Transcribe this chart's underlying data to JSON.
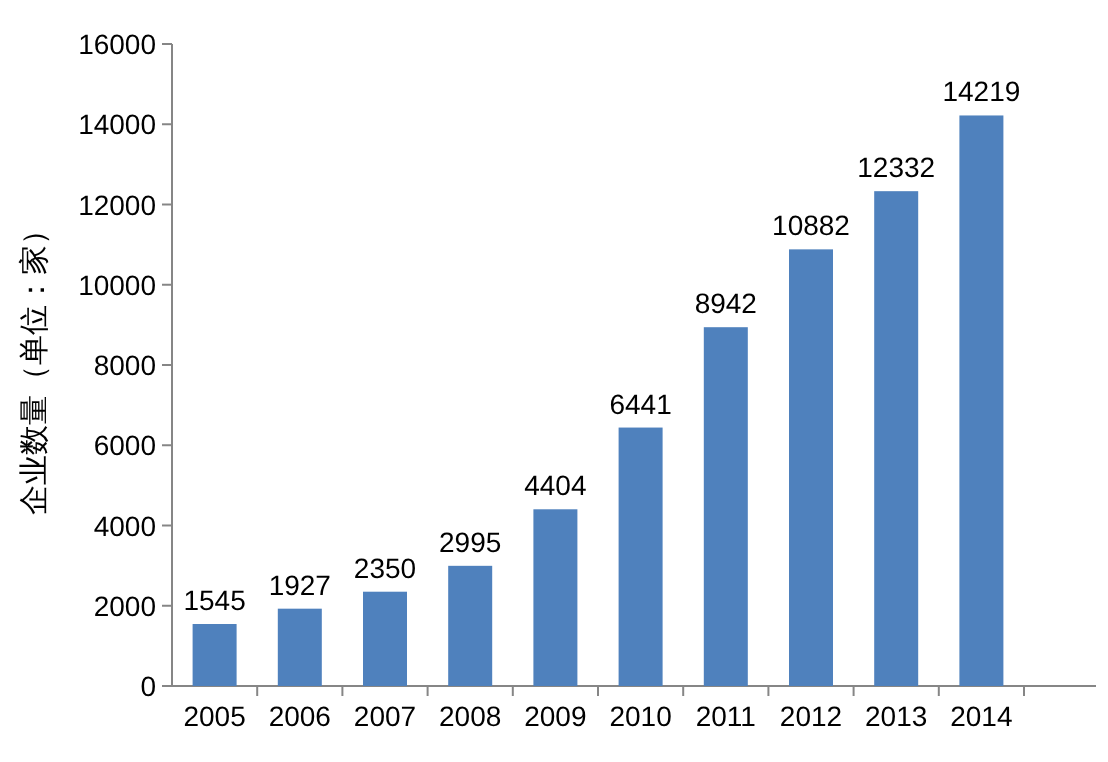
{
  "chart_data": {
    "type": "bar",
    "ylabel": "企业数量（单位：家）",
    "categories": [
      "2005",
      "2006",
      "2007",
      "2008",
      "2009",
      "2010",
      "2011",
      "2012",
      "2013",
      "2014"
    ],
    "values": [
      1545,
      1927,
      2350,
      2995,
      4404,
      6441,
      8942,
      10882,
      12332,
      14219
    ],
    "color": "#4f81bd",
    "ylim": [
      0,
      16000
    ],
    "yticks": [
      0,
      2000,
      4000,
      6000,
      8000,
      10000,
      12000,
      14000,
      16000
    ],
    "data_labels": true
  }
}
